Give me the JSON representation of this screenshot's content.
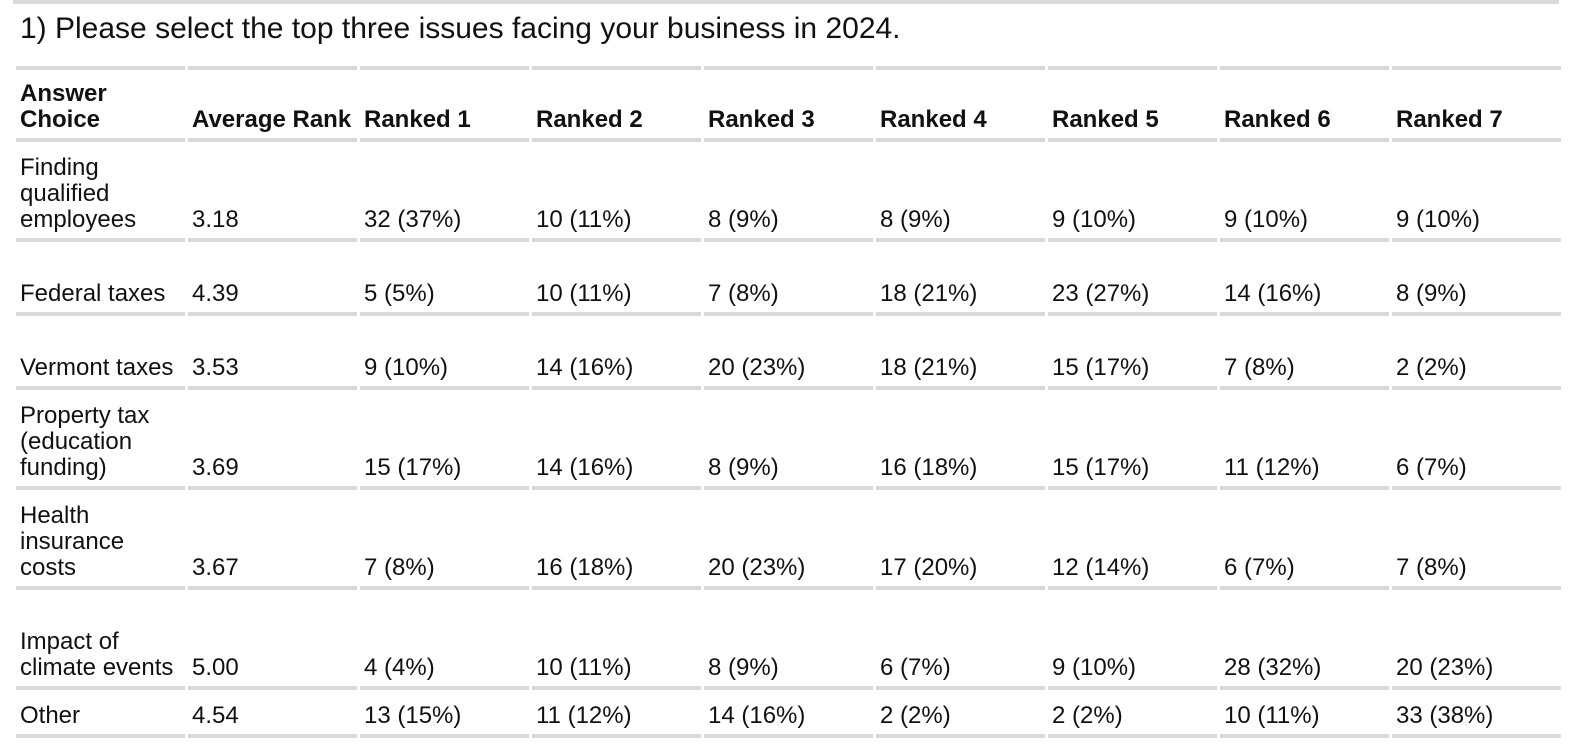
{
  "question": "1) Please select the top three issues facing your business in 2024.",
  "table": {
    "headers": [
      "Answer Choice",
      "Average Rank",
      "Ranked 1",
      "Ranked 2",
      "Ranked 3",
      "Ranked 4",
      "Ranked 5",
      "Ranked 6",
      "Ranked 7"
    ],
    "rows": [
      {
        "choice": "Finding qualified employees",
        "avg": "3.18",
        "ranks": [
          "32 (37%)",
          "10 (11%)",
          "8 (9%)",
          "8 (9%)",
          "9 (10%)",
          "9 (10%)",
          "9 (10%)"
        ]
      },
      {
        "choice": "Federal taxes",
        "avg": "4.39",
        "ranks": [
          "5 (5%)",
          "10 (11%)",
          "7 (8%)",
          "18 (21%)",
          "23 (27%)",
          "14 (16%)",
          "8 (9%)"
        ]
      },
      {
        "choice": "Vermont taxes",
        "avg": "3.53",
        "ranks": [
          "9 (10%)",
          "14 (16%)",
          "20 (23%)",
          "18 (21%)",
          "15 (17%)",
          "7 (8%)",
          "2 (2%)"
        ]
      },
      {
        "choice": "Property tax (education funding)",
        "avg": "3.69",
        "ranks": [
          "15 (17%)",
          "14 (16%)",
          "8 (9%)",
          "16 (18%)",
          "15 (17%)",
          "11 (12%)",
          "6 (7%)"
        ]
      },
      {
        "choice": "Health insurance costs",
        "avg": "3.67",
        "ranks": [
          "7 (8%)",
          "16 (18%)",
          "20 (23%)",
          "17 (20%)",
          "12 (14%)",
          "6 (7%)",
          "7 (8%)"
        ]
      },
      {
        "choice": "Impact of climate events",
        "avg": "5.00",
        "ranks": [
          "4 (4%)",
          "10 (11%)",
          "8 (9%)",
          "6 (7%)",
          "9 (10%)",
          "28 (32%)",
          "20 (23%)"
        ]
      },
      {
        "choice": "Other",
        "avg": "4.54",
        "ranks": [
          "13 (15%)",
          "11 (12%)",
          "14 (16%)",
          "2 (2%)",
          "2 (2%)",
          "10 (11%)",
          "33 (38%)"
        ]
      }
    ]
  }
}
